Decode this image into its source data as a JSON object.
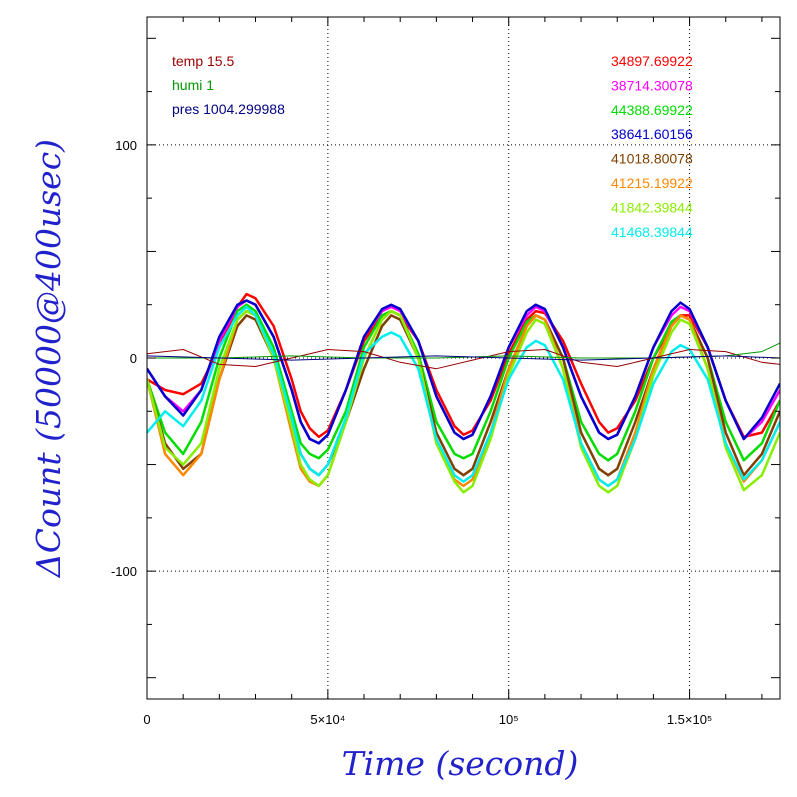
{
  "chart_data": {
    "type": "line",
    "xlabel": "Time (second)",
    "ylabel": "ΔCount (50000@400usec)",
    "xlim": [
      0,
      175000
    ],
    "ylim": [
      -160,
      160
    ],
    "grid": "dotted",
    "x_tick_labels": [
      {
        "value": 0,
        "label": "0"
      },
      {
        "value": 50000,
        "label": "5×10⁴"
      },
      {
        "value": 100000,
        "label": "10⁵"
      },
      {
        "value": 150000,
        "label": "1.5×10⁵"
      }
    ],
    "y_tick_labels": [
      {
        "value": 100,
        "label": "100"
      },
      {
        "value": 0,
        "label": "0"
      },
      {
        "value": -100,
        "label": "-100"
      }
    ],
    "env_legend": [
      {
        "label": "temp 15.5",
        "color": "#990000"
      },
      {
        "label": "humi 1",
        "color": "#009900"
      },
      {
        "label": "pres 1004.299988",
        "color": "#000080"
      }
    ],
    "series": [
      {
        "name": "34897.69922",
        "color": "#ff0000",
        "x": [
          0,
          5000,
          10000,
          15000,
          20000,
          25000,
          27500,
          30000,
          35000,
          40000,
          42500,
          45000,
          47500,
          50000,
          55000,
          60000,
          65000,
          67500,
          70000,
          75000,
          80000,
          85000,
          87500,
          90000,
          95000,
          100000,
          105000,
          107500,
          110000,
          115000,
          120000,
          125000,
          127500,
          130000,
          135000,
          140000,
          145000,
          147500,
          150000,
          155000,
          160000,
          165000,
          170000,
          175000
        ],
        "y": [
          -10,
          -15,
          -17,
          -12,
          5,
          24,
          30,
          28,
          15,
          -10,
          -25,
          -33,
          -37,
          -34,
          -15,
          8,
          20,
          22,
          20,
          8,
          -15,
          -32,
          -36,
          -34,
          -20,
          2,
          18,
          22,
          21,
          8,
          -12,
          -30,
          -35,
          -33,
          -20,
          0,
          15,
          20,
          20,
          5,
          -20,
          -37,
          -35,
          -20
        ]
      },
      {
        "name": "38714.30078",
        "color": "#ff00ff",
        "x": [
          0,
          5000,
          10000,
          15000,
          20000,
          25000,
          27500,
          30000,
          35000,
          40000,
          42500,
          45000,
          47500,
          50000,
          55000,
          60000,
          65000,
          67500,
          70000,
          75000,
          80000,
          85000,
          87500,
          90000,
          95000,
          100000,
          105000,
          107500,
          110000,
          115000,
          120000,
          125000,
          127500,
          130000,
          135000,
          140000,
          145000,
          147500,
          150000,
          155000,
          160000,
          165000,
          170000,
          175000
        ],
        "y": [
          -5,
          -18,
          -25,
          -15,
          8,
          24,
          27,
          25,
          10,
          -15,
          -30,
          -38,
          -40,
          -36,
          -15,
          10,
          22,
          24,
          22,
          8,
          -18,
          -35,
          -38,
          -36,
          -18,
          5,
          20,
          24,
          22,
          5,
          -18,
          -35,
          -38,
          -36,
          -18,
          5,
          20,
          24,
          22,
          5,
          -20,
          -38,
          -30,
          -15
        ]
      },
      {
        "name": "44388.69922",
        "color": "#00dd00",
        "x": [
          0,
          5000,
          10000,
          15000,
          20000,
          25000,
          27500,
          30000,
          35000,
          40000,
          42500,
          45000,
          47500,
          50000,
          55000,
          60000,
          65000,
          67500,
          70000,
          75000,
          80000,
          85000,
          87500,
          90000,
          95000,
          100000,
          105000,
          107500,
          110000,
          115000,
          120000,
          125000,
          127500,
          130000,
          135000,
          140000,
          145000,
          147500,
          150000,
          155000,
          160000,
          165000,
          170000,
          175000
        ],
        "y": [
          -10,
          -35,
          -45,
          -30,
          0,
          22,
          25,
          22,
          5,
          -25,
          -40,
          -45,
          -47,
          -43,
          -25,
          5,
          20,
          22,
          20,
          2,
          -30,
          -45,
          -47,
          -45,
          -25,
          0,
          17,
          20,
          18,
          0,
          -30,
          -45,
          -48,
          -45,
          -25,
          0,
          17,
          20,
          18,
          0,
          -30,
          -48,
          -40,
          -20
        ]
      },
      {
        "name": "38641.60156",
        "color": "#0000cc",
        "x": [
          0,
          5000,
          10000,
          15000,
          20000,
          25000,
          27500,
          30000,
          35000,
          40000,
          42500,
          45000,
          47500,
          50000,
          55000,
          60000,
          65000,
          67500,
          70000,
          75000,
          80000,
          85000,
          87500,
          90000,
          95000,
          100000,
          105000,
          107500,
          110000,
          115000,
          120000,
          125000,
          127500,
          130000,
          135000,
          140000,
          145000,
          147500,
          150000,
          155000,
          160000,
          165000,
          170000,
          175000
        ],
        "y": [
          -5,
          -18,
          -27,
          -15,
          10,
          25,
          27,
          25,
          10,
          -15,
          -30,
          -38,
          -40,
          -36,
          -15,
          10,
          23,
          25,
          23,
          8,
          -18,
          -35,
          -38,
          -36,
          -18,
          5,
          22,
          25,
          23,
          5,
          -18,
          -35,
          -38,
          -36,
          -18,
          5,
          22,
          26,
          23,
          5,
          -20,
          -38,
          -28,
          -12
        ]
      },
      {
        "name": "41018.80078",
        "color": "#804000",
        "x": [
          0,
          5000,
          10000,
          15000,
          20000,
          25000,
          27500,
          30000,
          35000,
          40000,
          42500,
          45000,
          47500,
          50000,
          55000,
          60000,
          65000,
          67500,
          70000,
          75000,
          80000,
          85000,
          87500,
          90000,
          95000,
          100000,
          105000,
          107500,
          110000,
          115000,
          120000,
          125000,
          127500,
          130000,
          135000,
          140000,
          145000,
          147500,
          150000,
          155000,
          160000,
          165000,
          170000,
          175000
        ],
        "y": [
          -10,
          -40,
          -52,
          -45,
          -10,
          15,
          20,
          18,
          0,
          -30,
          -45,
          -52,
          -55,
          -50,
          -30,
          -5,
          15,
          20,
          18,
          0,
          -35,
          -52,
          -55,
          -52,
          -30,
          -5,
          15,
          20,
          18,
          0,
          -35,
          -52,
          -55,
          -52,
          -30,
          -5,
          15,
          20,
          18,
          0,
          -35,
          -55,
          -45,
          -25
        ]
      },
      {
        "name": "41215.19922",
        "color": "#ff8800",
        "x": [
          0,
          5000,
          10000,
          15000,
          20000,
          25000,
          27500,
          30000,
          35000,
          40000,
          42500,
          45000,
          47500,
          50000,
          55000,
          60000,
          65000,
          67500,
          70000,
          75000,
          80000,
          85000,
          87500,
          90000,
          95000,
          100000,
          105000,
          107500,
          110000,
          115000,
          120000,
          125000,
          127500,
          130000,
          135000,
          140000,
          145000,
          147500,
          150000,
          155000,
          160000,
          165000,
          170000,
          175000
        ],
        "y": [
          -10,
          -45,
          -55,
          -45,
          -10,
          18,
          22,
          20,
          0,
          -35,
          -52,
          -58,
          -60,
          -55,
          -30,
          0,
          18,
          22,
          20,
          0,
          -40,
          -57,
          -60,
          -57,
          -35,
          -5,
          15,
          20,
          18,
          -5,
          -40,
          -57,
          -60,
          -57,
          -35,
          -5,
          15,
          20,
          18,
          -5,
          -40,
          -58,
          -48,
          -30
        ]
      },
      {
        "name": "41842.39844",
        "color": "#88ee00",
        "x": [
          0,
          5000,
          10000,
          15000,
          20000,
          25000,
          27500,
          30000,
          35000,
          40000,
          42500,
          45000,
          47500,
          50000,
          55000,
          60000,
          65000,
          67500,
          70000,
          75000,
          80000,
          85000,
          87500,
          90000,
          95000,
          100000,
          105000,
          107500,
          110000,
          115000,
          120000,
          125000,
          127500,
          130000,
          135000,
          140000,
          145000,
          147500,
          150000,
          155000,
          160000,
          165000,
          170000,
          175000
        ],
        "y": [
          -10,
          -42,
          -50,
          -40,
          -5,
          18,
          22,
          20,
          0,
          -32,
          -50,
          -57,
          -60,
          -55,
          -30,
          0,
          18,
          22,
          20,
          0,
          -40,
          -58,
          -63,
          -60,
          -38,
          -8,
          12,
          18,
          16,
          -5,
          -42,
          -60,
          -63,
          -60,
          -38,
          -8,
          12,
          18,
          16,
          -5,
          -42,
          -62,
          -55,
          -35
        ]
      },
      {
        "name": "41468.39844",
        "color": "#00eeee",
        "x": [
          0,
          5000,
          10000,
          15000,
          20000,
          25000,
          27500,
          30000,
          35000,
          40000,
          42500,
          45000,
          47500,
          50000,
          55000,
          60000,
          65000,
          67500,
          70000,
          75000,
          80000,
          85000,
          87500,
          90000,
          95000,
          100000,
          105000,
          107500,
          110000,
          115000,
          120000,
          125000,
          127500,
          130000,
          135000,
          140000,
          145000,
          147500,
          150000,
          155000,
          160000,
          165000,
          170000,
          175000
        ],
        "y": [
          -35,
          -25,
          -32,
          -20,
          5,
          20,
          24,
          20,
          2,
          -28,
          -45,
          -52,
          -55,
          -50,
          -28,
          2,
          10,
          12,
          10,
          -5,
          -38,
          -55,
          -58,
          -55,
          -35,
          -10,
          5,
          8,
          6,
          -10,
          -40,
          -57,
          -60,
          -57,
          -38,
          -12,
          3,
          6,
          4,
          -10,
          -40,
          -57,
          -48,
          -30
        ]
      },
      {
        "name": "temp",
        "color": "#990000",
        "thin": true,
        "x": [
          0,
          10000,
          20000,
          30000,
          40000,
          50000,
          60000,
          70000,
          80000,
          90000,
          100000,
          110000,
          120000,
          130000,
          140000,
          150000,
          160000,
          170000,
          175000
        ],
        "y": [
          2,
          4,
          -3,
          -4,
          0,
          4,
          3,
          -2,
          -5,
          -1,
          3,
          4,
          -2,
          -4,
          0,
          4,
          3,
          -2,
          -3
        ]
      },
      {
        "name": "humi",
        "color": "#009900",
        "thin": true,
        "x": [
          0,
          20000,
          40000,
          60000,
          80000,
          100000,
          120000,
          140000,
          160000,
          170000,
          175000
        ],
        "y": [
          0,
          0,
          1,
          0,
          0,
          1,
          0,
          0,
          1,
          3,
          7
        ]
      },
      {
        "name": "pres",
        "color": "#000080",
        "thin": true,
        "x": [
          0,
          20000,
          40000,
          60000,
          80000,
          100000,
          120000,
          140000,
          160000,
          175000
        ],
        "y": [
          1,
          0,
          -1,
          0,
          1,
          0,
          -1,
          0,
          1,
          0
        ]
      }
    ]
  }
}
